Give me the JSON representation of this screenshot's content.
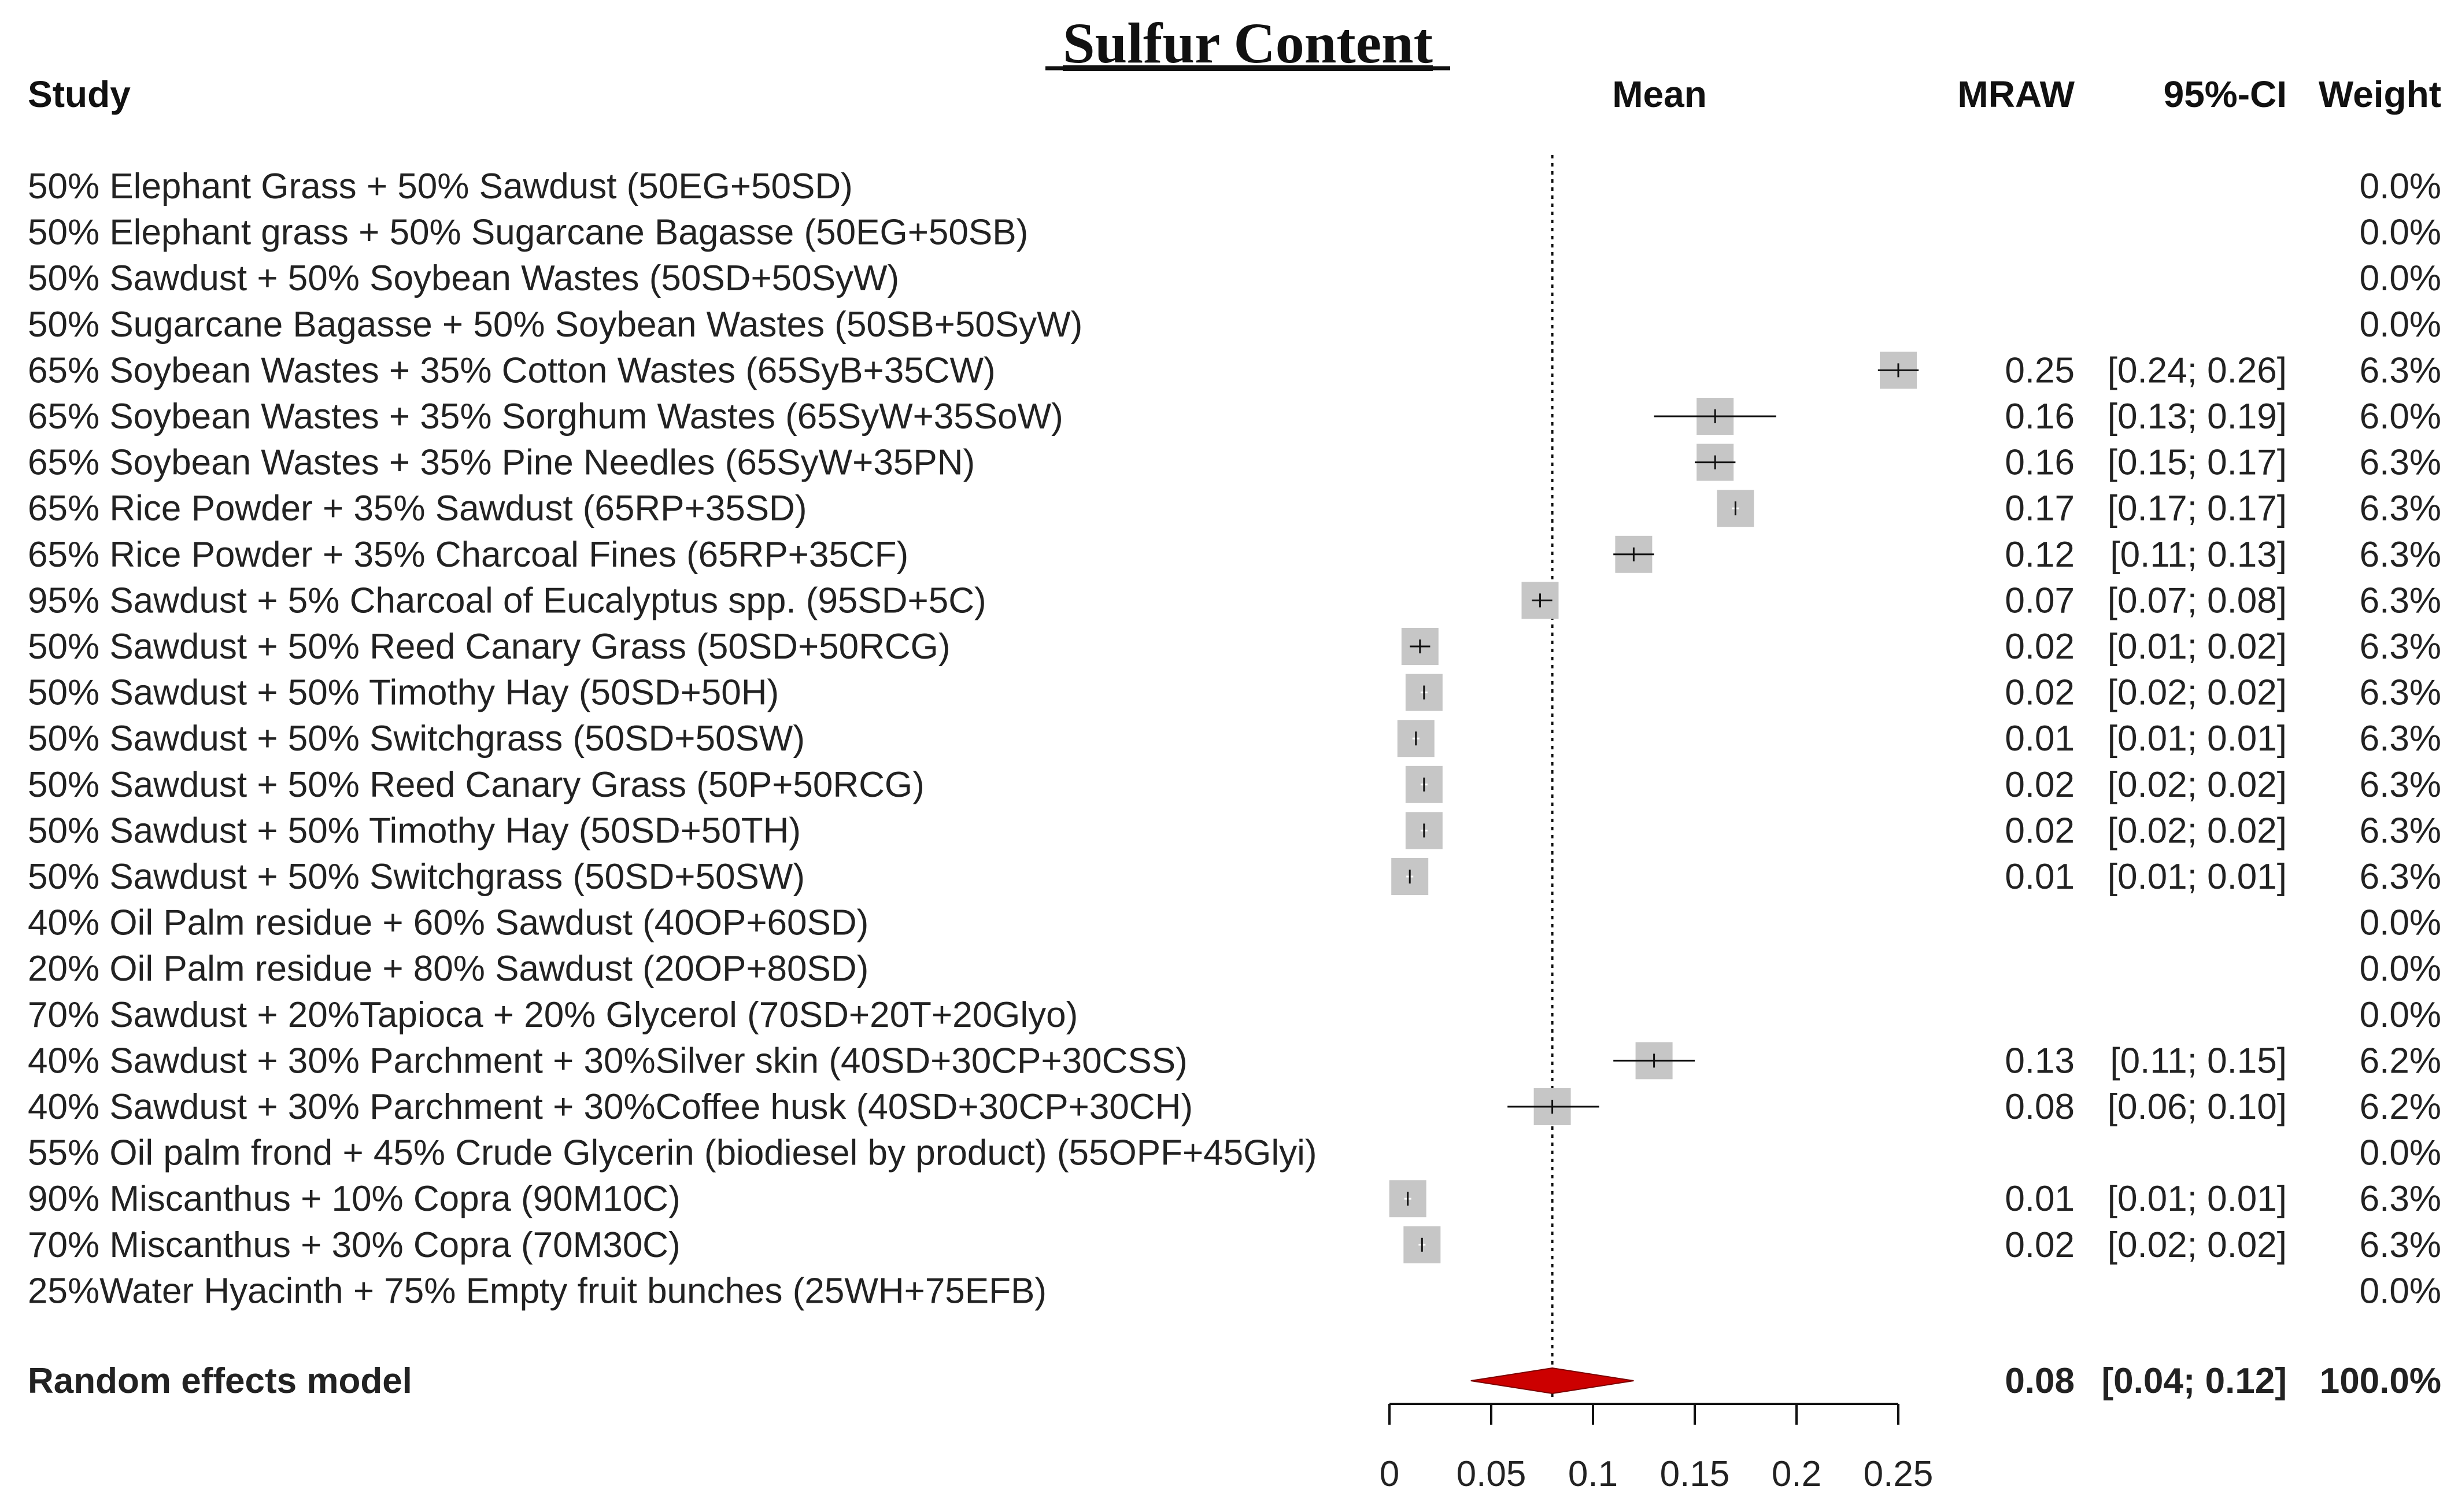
{
  "chart_data": {
    "type": "forest",
    "title": "Sulfur Content",
    "headers": {
      "study": "Study",
      "mean": "Mean",
      "mraw": "MRAW",
      "ci": "95%-CI",
      "weight": "Weight"
    },
    "xaxis": {
      "ticks": [
        0,
        0.05,
        0.1,
        0.15,
        0.2,
        0.25
      ],
      "tick_labels": [
        "0",
        "0.05",
        "0.1",
        "0.15",
        "0.2",
        "0.25"
      ],
      "range": [
        0,
        0.25
      ]
    },
    "reference_line": 0.08,
    "studies": [
      {
        "label": "50% Elephant Grass + 50% Sawdust (50EG+50SD)",
        "mraw": "",
        "ci": "",
        "weight": "0.0%"
      },
      {
        "label": "50% Elephant grass + 50% Sugarcane Bagasse (50EG+50SB)",
        "mraw": "",
        "ci": "",
        "weight": "0.0%"
      },
      {
        "label": "50% Sawdust + 50% Soybean Wastes (50SD+50SyW)",
        "mraw": "",
        "ci": "",
        "weight": "0.0%"
      },
      {
        "label": "50% Sugarcane Bagasse + 50% Soybean Wastes (50SB+50SyW)",
        "mraw": "",
        "ci": "",
        "weight": "0.0%"
      },
      {
        "label": "65% Soybean Wastes + 35% Cotton Wastes (65SyB+35CW)",
        "mean": 0.25,
        "lo": 0.24,
        "hi": 0.26,
        "mraw": "0.25",
        "ci": "[0.24; 0.26]",
        "weight": "6.3%"
      },
      {
        "label": "65% Soybean Wastes + 35% Sorghum Wastes (65SyW+35SoW)",
        "mean": 0.16,
        "lo": 0.13,
        "hi": 0.19,
        "mraw": "0.16",
        "ci": "[0.13; 0.19]",
        "weight": "6.0%"
      },
      {
        "label": "65% Soybean Wastes + 35% Pine Needles (65SyW+35PN)",
        "mean": 0.16,
        "lo": 0.15,
        "hi": 0.17,
        "mraw": "0.16",
        "ci": "[0.15; 0.17]",
        "weight": "6.3%"
      },
      {
        "label": "65% Rice Powder + 35% Sawdust (65RP+35SD)",
        "mean": 0.17,
        "lo": 0.17,
        "hi": 0.17,
        "mraw": "0.17",
        "ci": "[0.17; 0.17]",
        "weight": "6.3%"
      },
      {
        "label": "65% Rice Powder + 35% Charcoal Fines (65RP+35CF)",
        "mean": 0.12,
        "lo": 0.11,
        "hi": 0.13,
        "mraw": "0.12",
        "ci": "[0.11; 0.13]",
        "weight": "6.3%"
      },
      {
        "label": "95% Sawdust + 5% Charcoal of Eucalyptus spp. (95SD+5C)",
        "mean": 0.074,
        "lo": 0.07,
        "hi": 0.08,
        "mraw": "0.07",
        "ci": "[0.07; 0.08]",
        "weight": "6.3%"
      },
      {
        "label": "50% Sawdust + 50% Reed Canary Grass  (50SD+50RCG)",
        "mean": 0.015,
        "lo": 0.01,
        "hi": 0.02,
        "mraw": "0.02",
        "ci": "[0.01; 0.02]",
        "weight": "6.3%"
      },
      {
        "label": "50% Sawdust + 50% Timothy Hay (50SD+50H)",
        "mean": 0.017,
        "lo": 0.02,
        "hi": 0.02,
        "mraw": "0.02",
        "ci": "[0.02; 0.02]",
        "weight": "6.3%"
      },
      {
        "label": "50% Sawdust + 50% Switchgrass (50SD+50SW)",
        "mean": 0.013,
        "lo": 0.01,
        "hi": 0.01,
        "mraw": "0.01",
        "ci": "[0.01; 0.01]",
        "weight": "6.3%"
      },
      {
        "label": "50% Sawdust + 50% Reed Canary Grass  (50P+50RCG)",
        "mean": 0.017,
        "lo": 0.02,
        "hi": 0.02,
        "mraw": "0.02",
        "ci": "[0.02; 0.02]",
        "weight": "6.3%"
      },
      {
        "label": "50% Sawdust + 50% Timothy Hay (50SD+50TH)",
        "mean": 0.017,
        "lo": 0.02,
        "hi": 0.02,
        "mraw": "0.02",
        "ci": "[0.02; 0.02]",
        "weight": "6.3%"
      },
      {
        "label": "50% Sawdust + 50% Switchgrass (50SD+50SW)",
        "mean": 0.01,
        "lo": 0.01,
        "hi": 0.01,
        "mraw": "0.01",
        "ci": "[0.01; 0.01]",
        "weight": "6.3%"
      },
      {
        "label": "40% Oil Palm residue + 60% Sawdust (40OP+60SD)",
        "mraw": "",
        "ci": "",
        "weight": "0.0%"
      },
      {
        "label": "20% Oil Palm residue + 80% Sawdust (20OP+80SD)",
        "mraw": "",
        "ci": "",
        "weight": "0.0%"
      },
      {
        "label": "70% Sawdust + 20%Tapioca + 20% Glycerol (70SD+20T+20Glyo)",
        "mraw": "",
        "ci": "",
        "weight": "0.0%"
      },
      {
        "label": "40% Sawdust + 30% Parchment + 30%Silver skin (40SD+30CP+30CSS)",
        "mean": 0.13,
        "lo": 0.11,
        "hi": 0.15,
        "mraw": "0.13",
        "ci": "[0.11; 0.15]",
        "weight": "6.2%"
      },
      {
        "label": "40% Sawdust + 30% Parchment + 30%Coffee husk (40SD+30CP+30CH)",
        "mean": 0.08,
        "lo": 0.058,
        "hi": 0.103,
        "mraw": "0.08",
        "ci": "[0.06; 0.10]",
        "weight": "6.2%"
      },
      {
        "label": "55% Oil palm frond + 45% Crude Glycerin (biodiesel by product) (55OPF+45Glyi)",
        "mraw": "",
        "ci": "",
        "weight": "0.0%"
      },
      {
        "label": "90% Miscanthus + 10% Copra (90M10C)",
        "mean": 0.009,
        "lo": 0.01,
        "hi": 0.01,
        "mraw": "0.01",
        "ci": "[0.01; 0.01]",
        "weight": "6.3%"
      },
      {
        "label": "70% Miscanthus + 30% Copra (70M30C)",
        "mean": 0.016,
        "lo": 0.02,
        "hi": 0.02,
        "mraw": "0.02",
        "ci": "[0.02; 0.02]",
        "weight": "6.3%"
      },
      {
        "label": "25%Water Hyacinth + 75% Empty fruit bunches (25WH+75EFB)",
        "mraw": "",
        "ci": "",
        "weight": "0.0%"
      }
    ],
    "pooled": {
      "label": "Random effects model",
      "mean": 0.08,
      "lo": 0.04,
      "hi": 0.12,
      "mraw": "0.08",
      "ci": "[0.04; 0.12]",
      "weight": "100.0%"
    },
    "colors": {
      "box": "#c6c6c6",
      "line": "#111111",
      "diamond": "#cc0000",
      "text": "#222222"
    }
  }
}
